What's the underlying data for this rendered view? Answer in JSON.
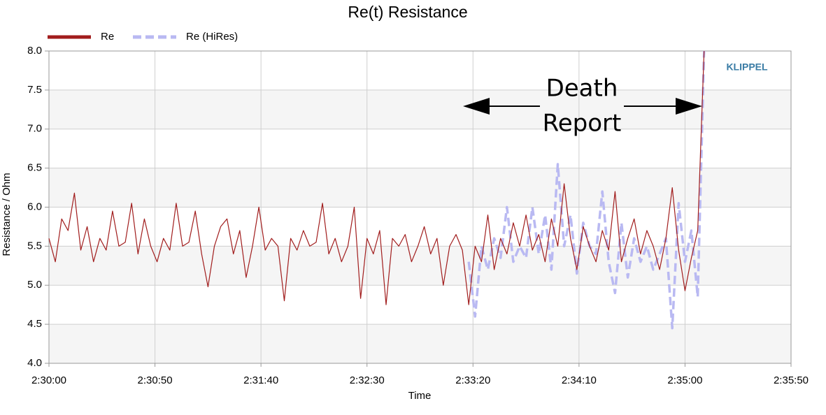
{
  "chart_data": {
    "type": "line",
    "title": "Re(t) Resistance",
    "x_label": "Time",
    "y_label": "Resistance / Ohm",
    "annotations": [
      "Death",
      "Report"
    ],
    "watermark": "KLIPPEL",
    "grid": true,
    "legend": "top-left",
    "xlim": [
      0,
      350
    ],
    "xticks": [
      {
        "value": 0,
        "label": "2:30:00"
      },
      {
        "value": 50,
        "label": "2:30:50"
      },
      {
        "value": 100,
        "label": "2:31:40"
      },
      {
        "value": 150,
        "label": "2:32:30"
      },
      {
        "value": 200,
        "label": "2:33:20"
      },
      {
        "value": 250,
        "label": "2:34:10"
      },
      {
        "value": 300,
        "label": "2:35:00"
      },
      {
        "value": 350,
        "label": "2:35:50"
      }
    ],
    "ylim": [
      4,
      8
    ],
    "yticks": [
      {
        "value": 4,
        "label": "4.0"
      },
      {
        "value": 4.5,
        "label": "4.5"
      },
      {
        "value": 5,
        "label": "5.0"
      },
      {
        "value": 5.5,
        "label": "5.5"
      },
      {
        "value": 6,
        "label": "6.0"
      },
      {
        "value": 6.5,
        "label": "6.5"
      },
      {
        "value": 7,
        "label": "7.0"
      },
      {
        "value": 7.5,
        "label": "7.5"
      },
      {
        "value": 8,
        "label": "8.0"
      }
    ],
    "x": [
      0,
      3,
      6,
      9,
      12,
      15,
      18,
      21,
      24,
      27,
      30,
      33,
      36,
      39,
      42,
      45,
      48,
      51,
      54,
      57,
      60,
      63,
      66,
      69,
      72,
      75,
      78,
      81,
      84,
      87,
      90,
      93,
      96,
      99,
      102,
      105,
      108,
      111,
      114,
      117,
      120,
      123,
      126,
      129,
      132,
      135,
      138,
      141,
      144,
      147,
      150,
      153,
      156,
      159,
      162,
      165,
      168,
      171,
      174,
      177,
      180,
      183,
      186,
      189,
      192,
      195,
      198,
      201,
      204,
      207,
      210,
      213,
      216,
      219,
      222,
      225,
      228,
      231,
      234,
      237,
      240,
      243,
      246,
      249,
      252,
      255,
      258,
      261,
      264,
      267,
      270,
      273,
      276,
      279,
      282,
      285,
      288,
      291,
      294,
      297,
      300,
      303,
      306,
      309
    ],
    "series": [
      {
        "name": "Re",
        "color": "#a11d1d",
        "values": [
          5.6,
          5.3,
          5.85,
          5.7,
          6.18,
          5.45,
          5.75,
          5.3,
          5.6,
          5.45,
          5.95,
          5.5,
          5.55,
          6.05,
          5.4,
          5.85,
          5.5,
          5.3,
          5.6,
          5.45,
          6.05,
          5.5,
          5.55,
          5.95,
          5.4,
          4.98,
          5.5,
          5.75,
          5.85,
          5.4,
          5.7,
          5.1,
          5.5,
          6.0,
          5.45,
          5.6,
          5.5,
          4.8,
          5.6,
          5.45,
          5.7,
          5.5,
          5.55,
          6.05,
          5.4,
          5.6,
          5.3,
          5.5,
          6.0,
          4.83,
          5.6,
          5.4,
          5.7,
          4.75,
          5.6,
          5.5,
          5.65,
          5.3,
          5.5,
          5.75,
          5.4,
          5.6,
          5.0,
          5.5,
          5.65,
          5.45,
          4.75,
          5.5,
          5.3,
          5.9,
          5.2,
          5.6,
          5.4,
          5.8,
          5.5,
          5.9,
          5.45,
          5.65,
          5.3,
          5.85,
          5.5,
          6.3,
          5.6,
          5.2,
          5.75,
          5.5,
          5.3,
          5.7,
          5.45,
          6.2,
          5.3,
          5.6,
          5.85,
          5.4,
          5.7,
          5.5,
          5.2,
          5.6,
          6.25,
          5.45,
          4.93,
          5.35,
          5.7,
          8.0
        ]
      },
      {
        "name": "Re (HiRes)",
        "color": "#b9b9f2",
        "values": [
          null,
          null,
          null,
          null,
          null,
          null,
          null,
          null,
          null,
          null,
          null,
          null,
          null,
          null,
          null,
          null,
          null,
          null,
          null,
          null,
          null,
          null,
          null,
          null,
          null,
          null,
          null,
          null,
          null,
          null,
          null,
          null,
          null,
          null,
          null,
          null,
          null,
          null,
          null,
          null,
          null,
          null,
          null,
          null,
          null,
          null,
          null,
          null,
          null,
          null,
          null,
          null,
          null,
          null,
          null,
          null,
          null,
          null,
          null,
          null,
          null,
          null,
          null,
          null,
          null,
          null,
          5.3,
          4.6,
          5.5,
          5.2,
          5.6,
          5.35,
          6.0,
          5.3,
          5.5,
          5.35,
          6.0,
          5.4,
          5.9,
          5.2,
          6.55,
          5.5,
          5.9,
          5.15,
          5.8,
          5.5,
          5.4,
          6.2,
          5.3,
          4.9,
          5.8,
          5.1,
          5.6,
          5.3,
          5.5,
          5.2,
          5.4,
          5.6,
          4.45,
          6.05,
          5.3,
          5.7,
          4.85,
          8.0
        ]
      }
    ]
  }
}
